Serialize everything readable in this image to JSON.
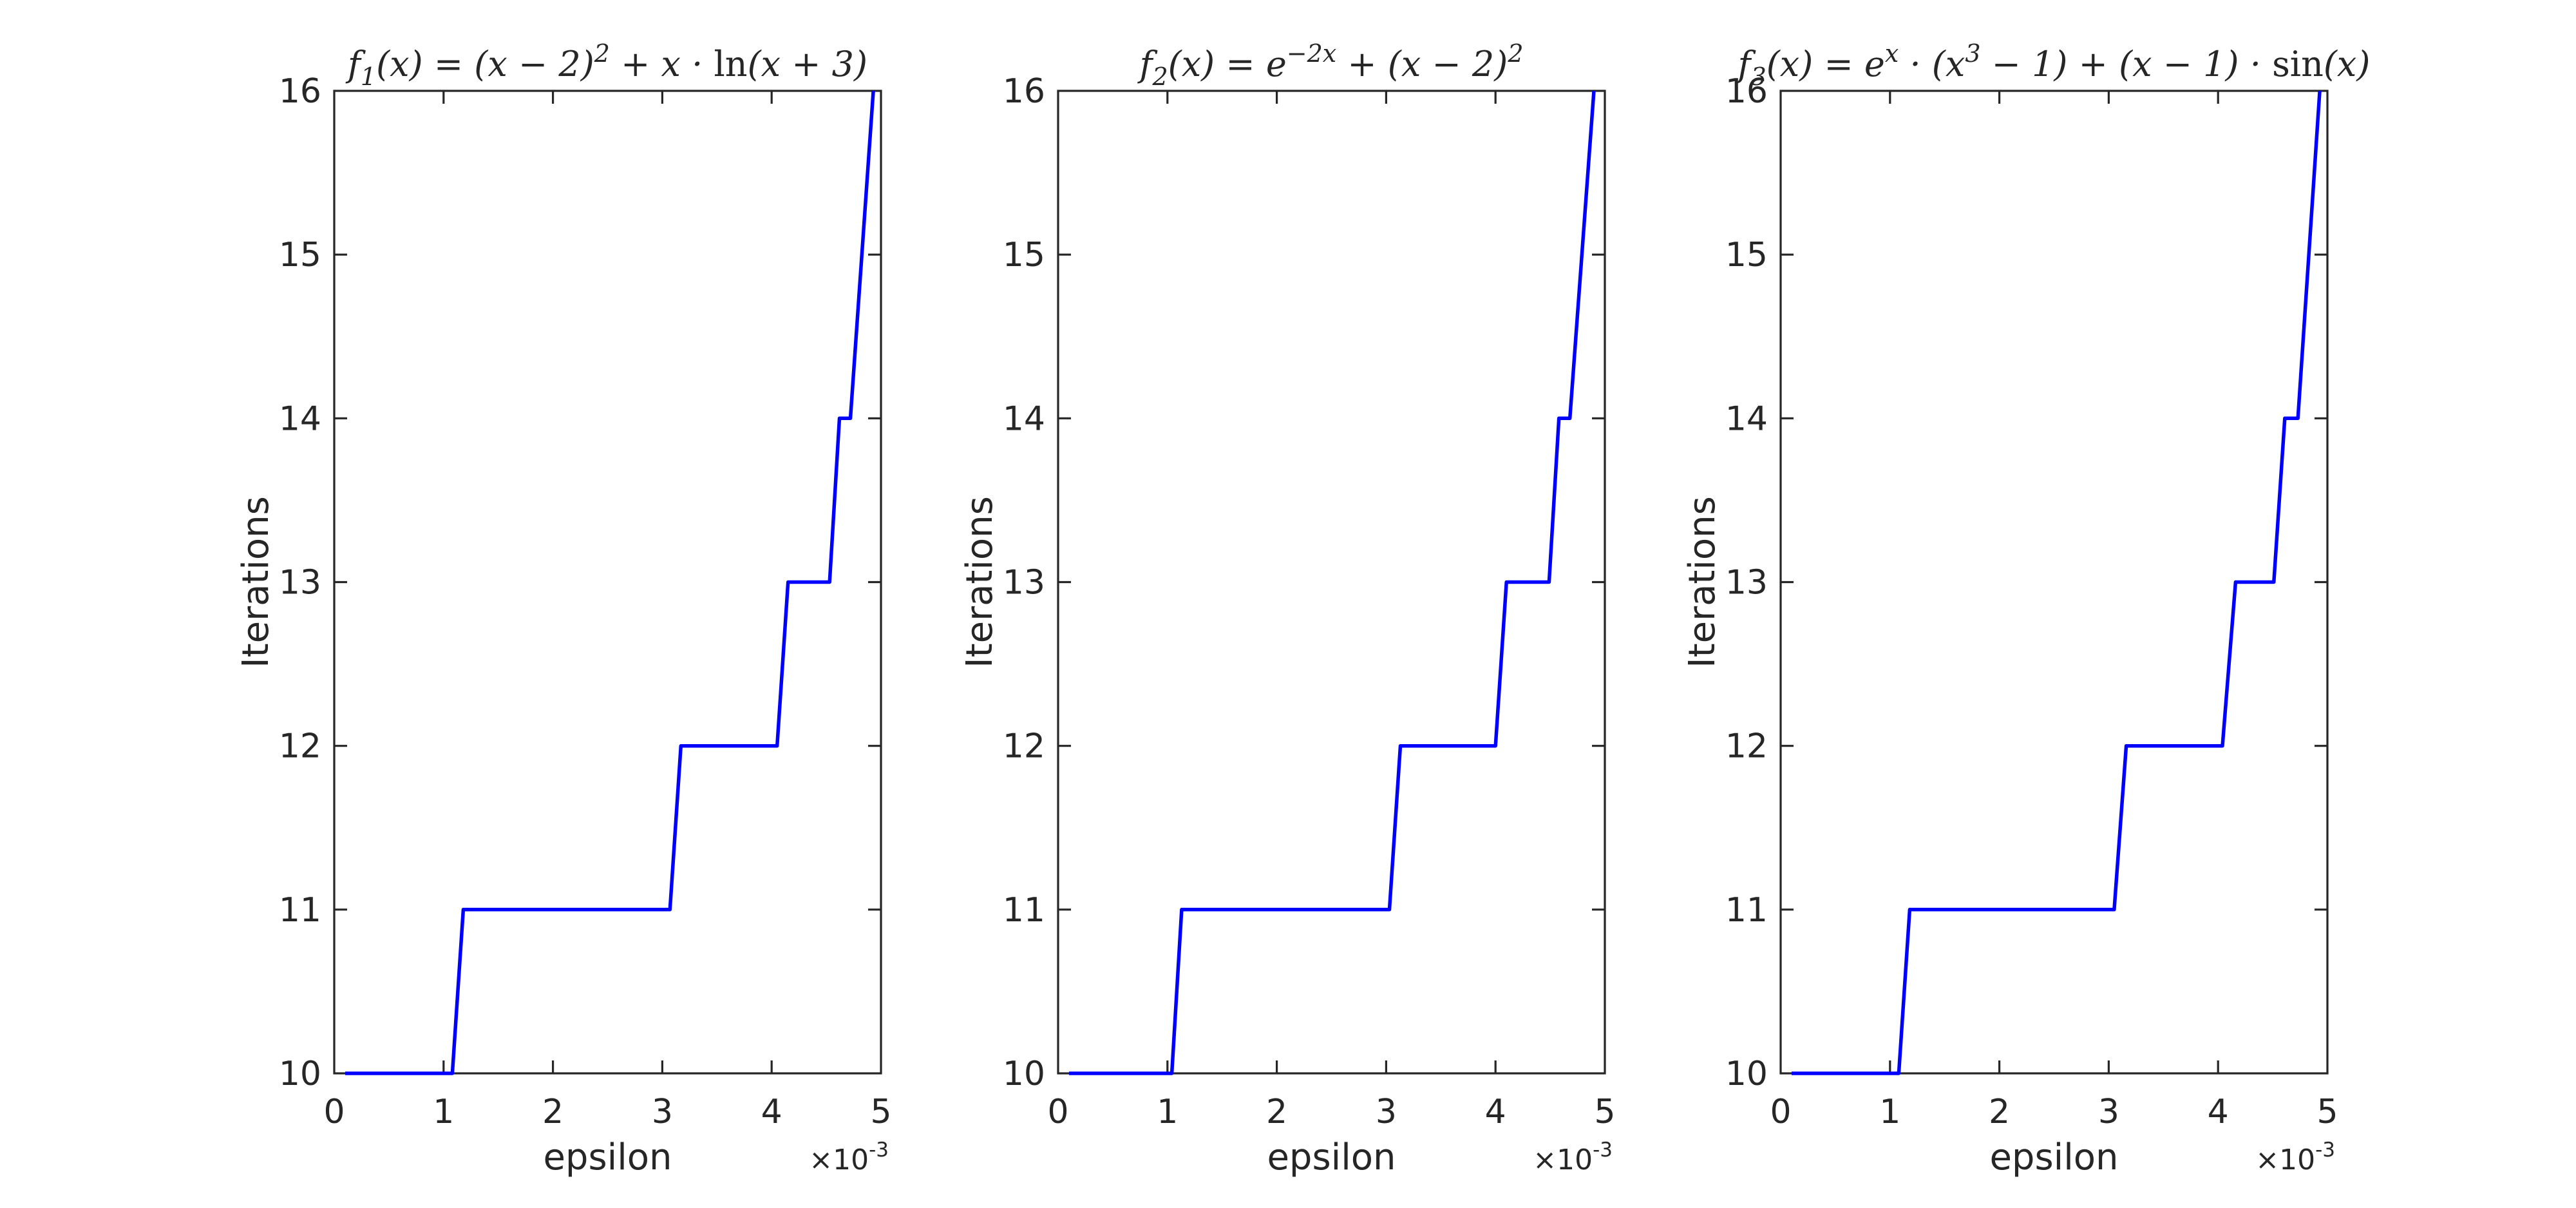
{
  "figure": {
    "background": "#ffffff",
    "axis_color": "#262626",
    "text_color": "#262626",
    "line_color": "#0000ff"
  },
  "chart_data": [
    {
      "type": "line",
      "title": "f₁(x) = (x − 2)² + x · ln(x + 3)",
      "title_segments": [
        {
          "t": "f"
        },
        {
          "t": "1",
          "s": "sub"
        },
        {
          "t": "(x) = (x − 2)"
        },
        {
          "t": "2",
          "s": "sup"
        },
        {
          "t": " + x · "
        },
        {
          "t": "ln",
          "s": "up"
        },
        {
          "t": "(x + 3)"
        }
      ],
      "xlabel": "epsilon",
      "ylabel": "Iterations",
      "x_offset_label": {
        "mult": "×10",
        "exp": "-3"
      },
      "x_multiplier": 0.001,
      "xlim": [
        0,
        5
      ],
      "ylim": [
        10,
        16
      ],
      "xticks": [
        0,
        1,
        2,
        3,
        4,
        5
      ],
      "yticks": [
        10,
        11,
        12,
        13,
        14,
        15,
        16
      ],
      "grid": false,
      "points": [
        [
          0.1,
          10
        ],
        [
          1.08,
          10
        ],
        [
          1.18,
          11
        ],
        [
          3.07,
          11
        ],
        [
          3.17,
          12
        ],
        [
          4.05,
          12
        ],
        [
          4.15,
          13
        ],
        [
          4.53,
          13
        ],
        [
          4.62,
          14
        ],
        [
          4.72,
          14
        ],
        [
          4.93,
          16
        ]
      ]
    },
    {
      "type": "line",
      "title": "f₂(x) = e⁻²ˣ + (x − 2)²",
      "title_segments": [
        {
          "t": "f"
        },
        {
          "t": "2",
          "s": "sub"
        },
        {
          "t": "(x) = e"
        },
        {
          "t": "−2x",
          "s": "sup"
        },
        {
          "t": " + (x − 2)"
        },
        {
          "t": "2",
          "s": "sup"
        }
      ],
      "xlabel": "epsilon",
      "ylabel": "Iterations",
      "x_offset_label": {
        "mult": "×10",
        "exp": "-3"
      },
      "x_multiplier": 0.001,
      "xlim": [
        0,
        5
      ],
      "ylim": [
        10,
        16
      ],
      "xticks": [
        0,
        1,
        2,
        3,
        4,
        5
      ],
      "yticks": [
        10,
        11,
        12,
        13,
        14,
        15,
        16
      ],
      "grid": false,
      "points": [
        [
          0.1,
          10
        ],
        [
          1.04,
          10
        ],
        [
          1.13,
          11
        ],
        [
          3.03,
          11
        ],
        [
          3.13,
          12
        ],
        [
          4.0,
          12
        ],
        [
          4.1,
          13
        ],
        [
          4.49,
          13
        ],
        [
          4.58,
          14
        ],
        [
          4.68,
          14
        ],
        [
          4.9,
          16
        ]
      ]
    },
    {
      "type": "line",
      "title": "f₃(x) = eˣ · (x³ − 1) + (x − 1) · sin(x)",
      "title_segments": [
        {
          "t": "f"
        },
        {
          "t": "3",
          "s": "sub"
        },
        {
          "t": "(x) = e"
        },
        {
          "t": "x",
          "s": "sup"
        },
        {
          "t": " · (x"
        },
        {
          "t": "3",
          "s": "sup"
        },
        {
          "t": " − 1) + (x − 1) · "
        },
        {
          "t": "sin",
          "s": "up"
        },
        {
          "t": "(x)"
        }
      ],
      "xlabel": "epsilon",
      "ylabel": "Iterations",
      "x_offset_label": {
        "mult": "×10",
        "exp": "-3"
      },
      "x_multiplier": 0.001,
      "xlim": [
        0,
        5
      ],
      "ylim": [
        10,
        16
      ],
      "xticks": [
        0,
        1,
        2,
        3,
        4,
        5
      ],
      "yticks": [
        10,
        11,
        12,
        13,
        14,
        15,
        16
      ],
      "grid": false,
      "points": [
        [
          0.1,
          10
        ],
        [
          1.08,
          10
        ],
        [
          1.18,
          11
        ],
        [
          3.05,
          11
        ],
        [
          3.16,
          12
        ],
        [
          4.04,
          12
        ],
        [
          4.16,
          13
        ],
        [
          4.51,
          13
        ],
        [
          4.61,
          14
        ],
        [
          4.73,
          14
        ],
        [
          4.93,
          16
        ]
      ]
    }
  ]
}
